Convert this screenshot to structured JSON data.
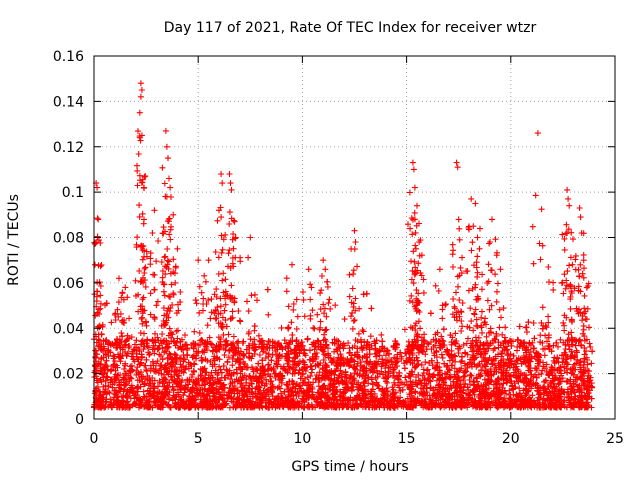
{
  "chart_data": {
    "type": "scatter",
    "title": "Day 117 of 2021, Rate Of TEC Index for receiver wtzr",
    "xlabel": "GPS time / hours",
    "ylabel": "ROTI / TECUs",
    "xlim": [
      0,
      25
    ],
    "ylim": [
      0,
      0.16
    ],
    "xticks": [
      0,
      5,
      10,
      15,
      20,
      25
    ],
    "xtick_labels": [
      "0",
      "5",
      "10",
      "15",
      "20",
      "25"
    ],
    "yticks": [
      0,
      0.02,
      0.04,
      0.06,
      0.08,
      0.1,
      0.12,
      0.14,
      0.16
    ],
    "ytick_labels": [
      "0",
      "0.02",
      "0.04",
      "0.06",
      "0.08",
      "0.1",
      "0.12",
      "0.14",
      "0.16"
    ],
    "grid": true,
    "marker": "plus",
    "series": [
      {
        "name": "ROTI",
        "color": "#ff0000",
        "baseline_band": [
          0.005,
          0.035
        ],
        "data_x_range": [
          0,
          23.9
        ],
        "peaks": [
          {
            "x": 0.1,
            "y": 0.104
          },
          {
            "x": 0.15,
            "y": 0.102
          },
          {
            "x": 0.2,
            "y": 0.088
          },
          {
            "x": 0.1,
            "y": 0.078
          },
          {
            "x": 0.05,
            "y": 0.068
          },
          {
            "x": 1.2,
            "y": 0.062
          },
          {
            "x": 1.5,
            "y": 0.058
          },
          {
            "x": 2.25,
            "y": 0.148
          },
          {
            "x": 2.3,
            "y": 0.145
          },
          {
            "x": 2.25,
            "y": 0.142
          },
          {
            "x": 2.2,
            "y": 0.135
          },
          {
            "x": 2.3,
            "y": 0.125
          },
          {
            "x": 2.2,
            "y": 0.124
          },
          {
            "x": 2.4,
            "y": 0.088
          },
          {
            "x": 2.8,
            "y": 0.082
          },
          {
            "x": 2.9,
            "y": 0.092
          },
          {
            "x": 3.45,
            "y": 0.127
          },
          {
            "x": 3.5,
            "y": 0.12
          },
          {
            "x": 3.55,
            "y": 0.115
          },
          {
            "x": 3.6,
            "y": 0.106
          },
          {
            "x": 3.65,
            "y": 0.102
          },
          {
            "x": 3.5,
            "y": 0.098
          },
          {
            "x": 3.8,
            "y": 0.09
          },
          {
            "x": 4.0,
            "y": 0.075
          },
          {
            "x": 5.0,
            "y": 0.07
          },
          {
            "x": 5.5,
            "y": 0.07
          },
          {
            "x": 6.1,
            "y": 0.108
          },
          {
            "x": 6.15,
            "y": 0.104
          },
          {
            "x": 6.0,
            "y": 0.092
          },
          {
            "x": 6.1,
            "y": 0.089
          },
          {
            "x": 6.5,
            "y": 0.108
          },
          {
            "x": 6.55,
            "y": 0.104
          },
          {
            "x": 6.6,
            "y": 0.101
          },
          {
            "x": 6.8,
            "y": 0.08
          },
          {
            "x": 7.5,
            "y": 0.08
          },
          {
            "x": 9.5,
            "y": 0.068
          },
          {
            "x": 10.3,
            "y": 0.066
          },
          {
            "x": 11.0,
            "y": 0.07
          },
          {
            "x": 11.1,
            "y": 0.066
          },
          {
            "x": 12.5,
            "y": 0.083
          },
          {
            "x": 12.55,
            "y": 0.078
          },
          {
            "x": 15.3,
            "y": 0.113
          },
          {
            "x": 15.35,
            "y": 0.11
          },
          {
            "x": 15.4,
            "y": 0.102
          },
          {
            "x": 15.5,
            "y": 0.094
          },
          {
            "x": 15.6,
            "y": 0.078
          },
          {
            "x": 15.45,
            "y": 0.075
          },
          {
            "x": 16.6,
            "y": 0.066
          },
          {
            "x": 17.4,
            "y": 0.113
          },
          {
            "x": 17.45,
            "y": 0.111
          },
          {
            "x": 17.5,
            "y": 0.088
          },
          {
            "x": 18.1,
            "y": 0.097
          },
          {
            "x": 18.3,
            "y": 0.095
          },
          {
            "x": 18.2,
            "y": 0.085
          },
          {
            "x": 18.4,
            "y": 0.08
          },
          {
            "x": 18.5,
            "y": 0.075
          },
          {
            "x": 19.1,
            "y": 0.088
          },
          {
            "x": 19.0,
            "y": 0.078
          },
          {
            "x": 19.5,
            "y": 0.066
          },
          {
            "x": 21.3,
            "y": 0.126
          },
          {
            "x": 21.8,
            "y": 0.067
          },
          {
            "x": 22.7,
            "y": 0.101
          },
          {
            "x": 22.75,
            "y": 0.097
          },
          {
            "x": 22.8,
            "y": 0.094
          },
          {
            "x": 22.7,
            "y": 0.082
          },
          {
            "x": 23.3,
            "y": 0.093
          },
          {
            "x": 23.35,
            "y": 0.089
          },
          {
            "x": 23.4,
            "y": 0.082
          },
          {
            "x": 23.5,
            "y": 0.07
          }
        ]
      }
    ]
  }
}
